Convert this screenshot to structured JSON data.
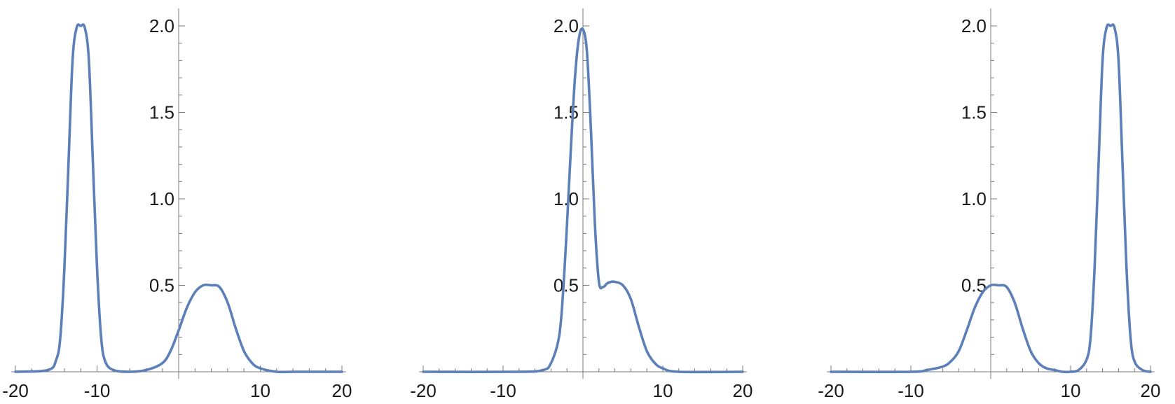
{
  "chart_data": [
    {
      "type": "line",
      "title": "",
      "xlabel": "",
      "ylabel": "",
      "xlim": [
        -20.5,
        20.5
      ],
      "ylim": [
        0,
        2.1
      ],
      "xticks": [
        -20,
        -10,
        10,
        20
      ],
      "xtick_labels": [
        "-20",
        "-10",
        "10",
        "20"
      ],
      "yticks": [
        0.5,
        1.0,
        1.5,
        2.0
      ],
      "ytick_labels": [
        "0.5",
        "1.0",
        "1.5",
        "2.0"
      ],
      "grid": false,
      "color": "#5d7fb8",
      "series": [
        {
          "x": [
            -20,
            -16,
            -15,
            -14.5,
            -14,
            -13.5,
            -13,
            -12.5,
            -12,
            -11.5,
            -11,
            -10.5,
            -10,
            -9.5,
            -9,
            -8,
            -6,
            -4,
            -2,
            -1,
            0,
            1,
            2,
            3,
            4,
            5,
            6,
            7,
            8,
            9,
            10,
            12,
            14,
            20
          ],
          "y": [
            0,
            0.01,
            0.07,
            0.2,
            0.6,
            1.2,
            1.8,
            1.99,
            2.0,
            1.99,
            1.8,
            1.2,
            0.6,
            0.2,
            0.06,
            0.01,
            0.0,
            0.01,
            0.05,
            0.12,
            0.24,
            0.37,
            0.46,
            0.5,
            0.5,
            0.49,
            0.4,
            0.25,
            0.12,
            0.05,
            0.02,
            0.0,
            0.0,
            0
          ]
        }
      ]
    },
    {
      "type": "line",
      "title": "",
      "xlabel": "",
      "ylabel": "",
      "xlim": [
        -20.5,
        20.5
      ],
      "ylim": [
        0,
        2.1
      ],
      "xticks": [
        -20,
        -10,
        10,
        20
      ],
      "xtick_labels": [
        "-20",
        "-10",
        "10",
        "20"
      ],
      "yticks": [
        0.5,
        1.0,
        1.5,
        2.0
      ],
      "ytick_labels": [
        "0.5",
        "1.0",
        "1.5",
        "2.0"
      ],
      "grid": false,
      "color": "#5d7fb8",
      "series": [
        {
          "x": [
            -20,
            -8,
            -5,
            -4,
            -3,
            -2.5,
            -2,
            -1.5,
            -1,
            -0.5,
            0,
            0.5,
            1,
            1.5,
            2,
            2.5,
            3,
            3.5,
            4,
            5,
            6,
            7,
            8,
            9,
            10,
            12,
            20
          ],
          "y": [
            0,
            0,
            0.01,
            0.05,
            0.2,
            0.45,
            0.85,
            1.3,
            1.7,
            1.93,
            1.98,
            1.85,
            1.4,
            0.85,
            0.52,
            0.49,
            0.51,
            0.52,
            0.52,
            0.5,
            0.42,
            0.26,
            0.12,
            0.05,
            0.02,
            0.0,
            0
          ]
        }
      ]
    },
    {
      "type": "line",
      "title": "",
      "xlabel": "",
      "ylabel": "",
      "xlim": [
        -20.5,
        20.5
      ],
      "ylim": [
        0,
        2.1
      ],
      "xticks": [
        -20,
        -10,
        10,
        20
      ],
      "xtick_labels": [
        "-20",
        "-10",
        "10",
        "20"
      ],
      "yticks": [
        0.5,
        1.0,
        1.5,
        2.0
      ],
      "ytick_labels": [
        "0.5",
        "1.0",
        "1.5",
        "2.0"
      ],
      "grid": false,
      "color": "#5d7fb8",
      "series": [
        {
          "x": [
            -20,
            -10,
            -8,
            -6,
            -5,
            -4,
            -3,
            -2,
            -1,
            0,
            1,
            2,
            3,
            4,
            5,
            6,
            7,
            8,
            9,
            10,
            11,
            12,
            12.5,
            13,
            13.5,
            14,
            14.5,
            15,
            15.5,
            16,
            16.5,
            17,
            17.5,
            18,
            19,
            20
          ],
          "y": [
            0,
            0,
            0.01,
            0.03,
            0.06,
            0.12,
            0.24,
            0.37,
            0.46,
            0.5,
            0.5,
            0.49,
            0.4,
            0.25,
            0.12,
            0.05,
            0.02,
            0.01,
            0.0,
            0.0,
            0.01,
            0.07,
            0.2,
            0.6,
            1.2,
            1.8,
            1.99,
            2.0,
            1.99,
            1.8,
            1.2,
            0.6,
            0.2,
            0.06,
            0.01,
            0
          ]
        }
      ]
    }
  ]
}
